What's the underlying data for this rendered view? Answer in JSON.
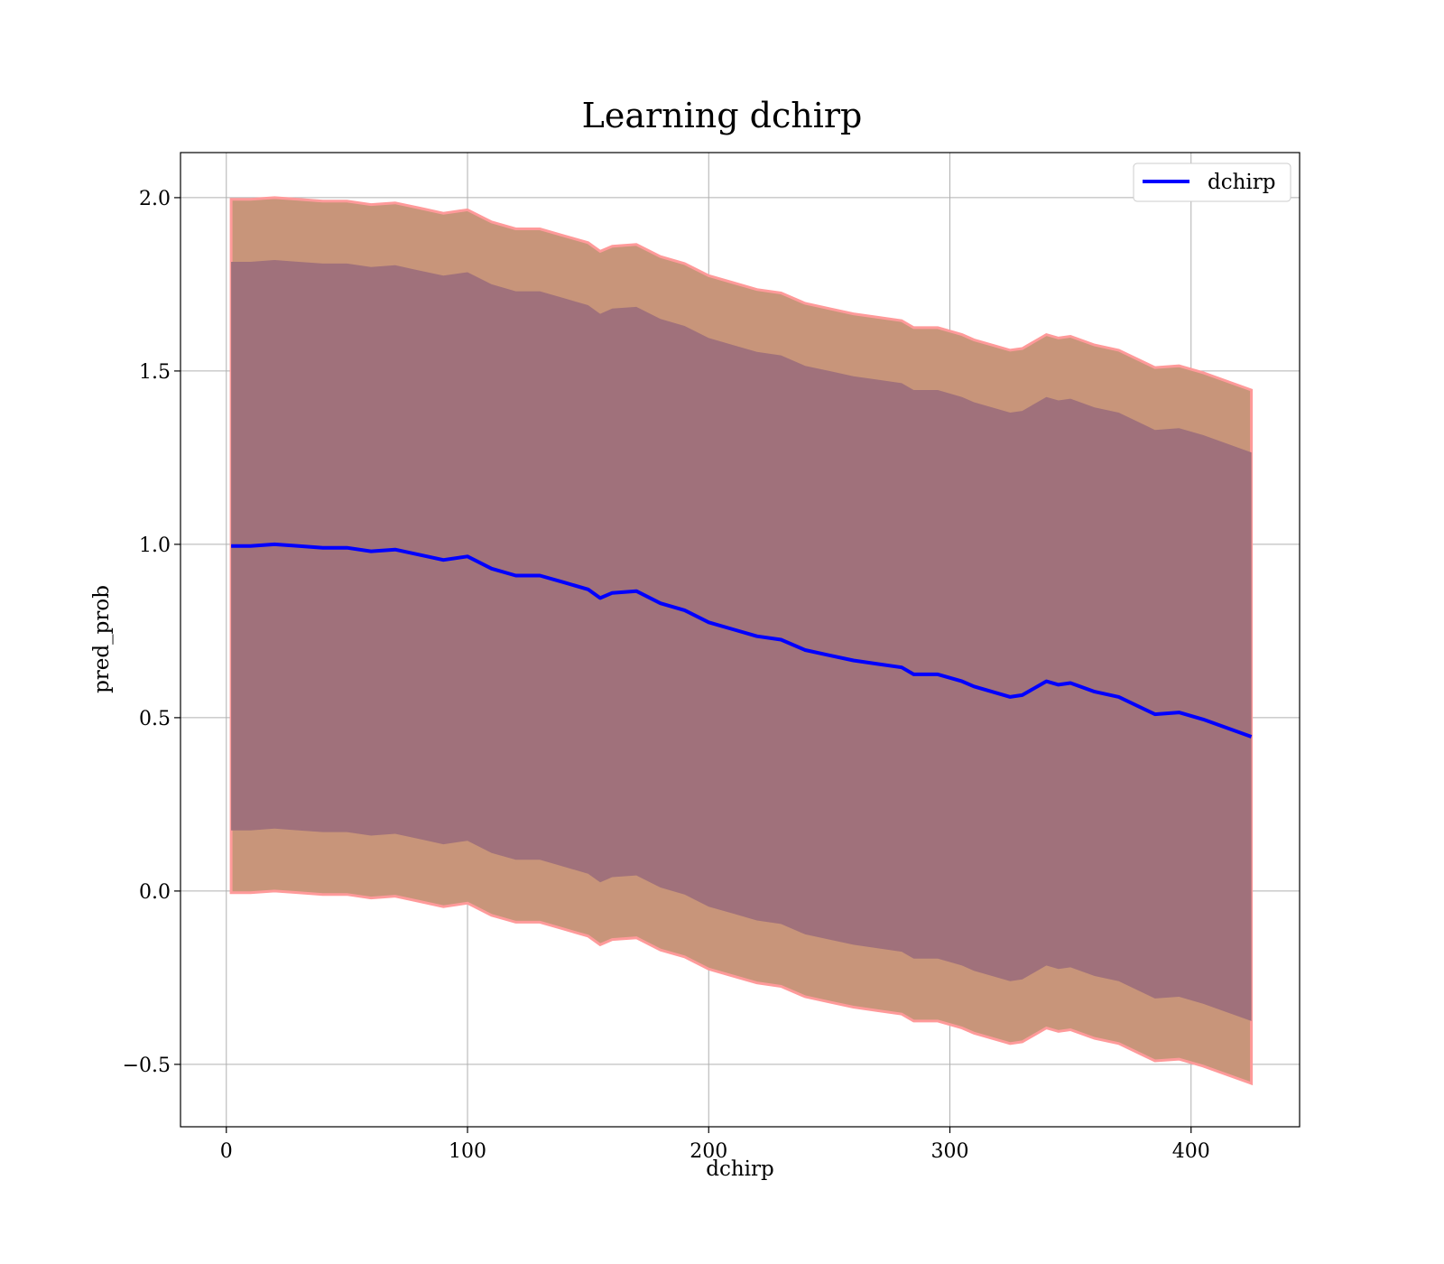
{
  "chart_data": {
    "type": "line",
    "title": "Learning dchirp",
    "xlabel": "dchirp",
    "ylabel": "pred_prob",
    "xlim": [
      -19,
      445
    ],
    "ylim": [
      -0.68,
      2.13
    ],
    "grid": true,
    "legend_position": "top-right",
    "x_ticks": [
      0,
      100,
      200,
      300,
      400
    ],
    "x_tick_labels": [
      "0",
      "100",
      "200",
      "300",
      "400"
    ],
    "y_ticks": [
      -0.5,
      0.0,
      0.5,
      1.0,
      1.5,
      2.0
    ],
    "y_tick_labels": [
      "−0.5",
      "0.0",
      "0.5",
      "1.0",
      "1.5",
      "2.0"
    ],
    "colors": {
      "line": "#0000ff",
      "outer_band": "#c8957a",
      "outer_band_edge": "#ff9a9a",
      "inner_band": "#a0717b"
    },
    "series": [
      {
        "name": "dchirp",
        "x": [
          2,
          10,
          20,
          30,
          40,
          50,
          60,
          70,
          80,
          90,
          100,
          110,
          120,
          130,
          140,
          150,
          155,
          160,
          170,
          180,
          190,
          200,
          210,
          220,
          230,
          240,
          250,
          260,
          270,
          280,
          285,
          295,
          305,
          310,
          325,
          330,
          340,
          345,
          350,
          360,
          370,
          385,
          395,
          405,
          425
        ],
        "y": [
          0.995,
          0.995,
          1.0,
          0.995,
          0.99,
          0.99,
          0.98,
          0.985,
          0.97,
          0.955,
          0.965,
          0.93,
          0.91,
          0.91,
          0.89,
          0.87,
          0.845,
          0.86,
          0.865,
          0.83,
          0.81,
          0.775,
          0.755,
          0.735,
          0.725,
          0.695,
          0.68,
          0.665,
          0.655,
          0.645,
          0.625,
          0.625,
          0.605,
          0.59,
          0.56,
          0.565,
          0.605,
          0.595,
          0.6,
          0.575,
          0.56,
          0.51,
          0.515,
          0.495,
          0.445
        ]
      }
    ],
    "bands": {
      "outer_half_width": 1.0,
      "inner_half_width": 0.82
    }
  }
}
